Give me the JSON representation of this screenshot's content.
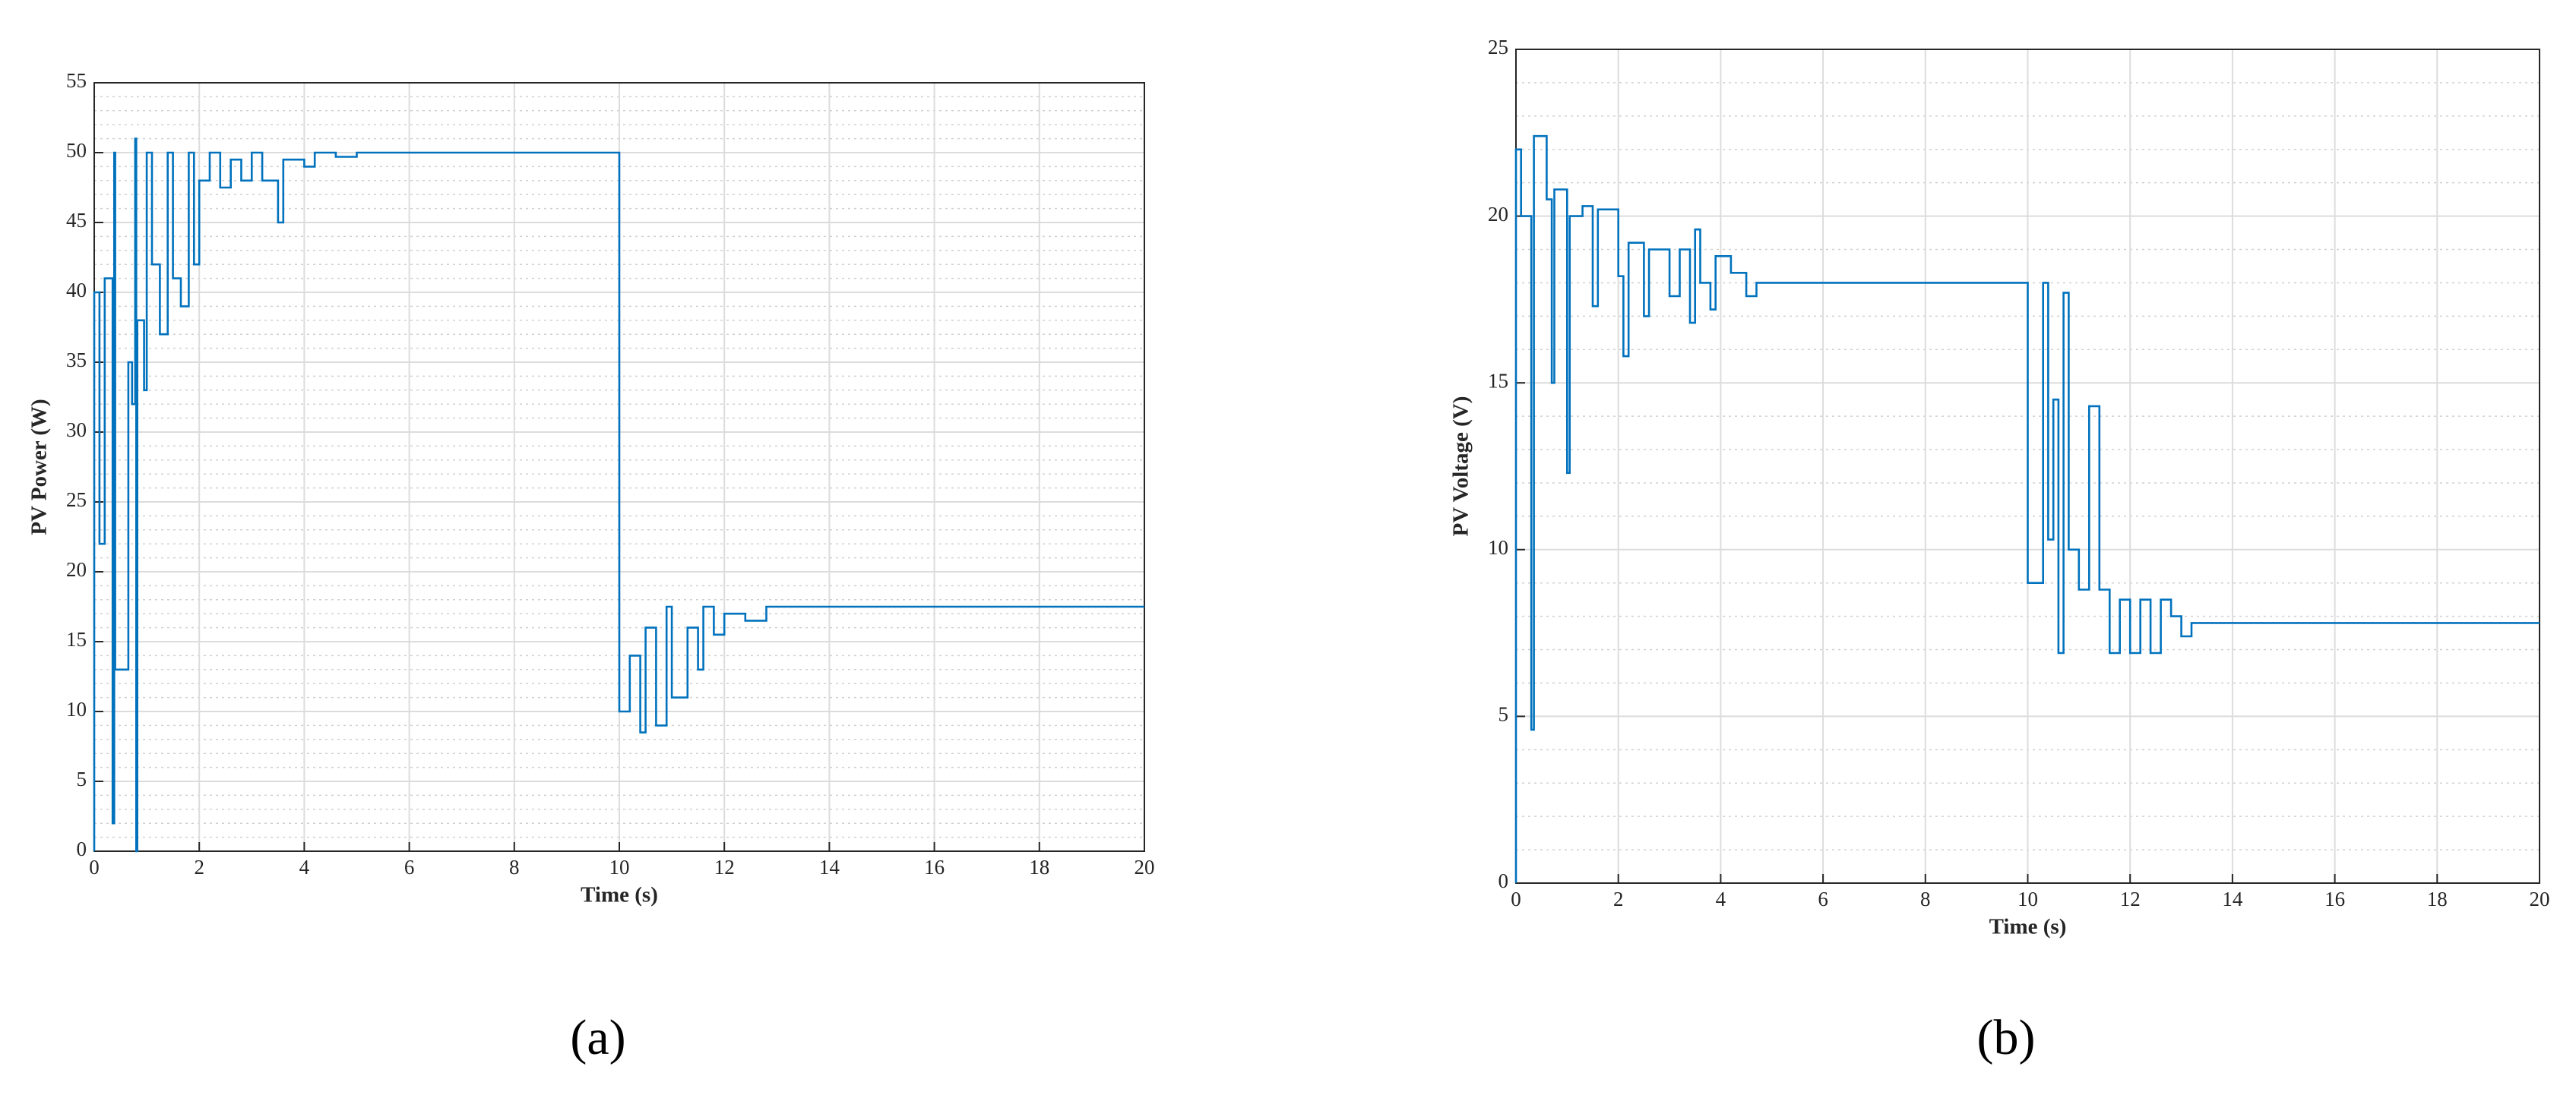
{
  "chart_data": [
    {
      "type": "line",
      "caption": "(a)",
      "xlabel": "Time (s)",
      "ylabel": "PV Power (W)",
      "xlim": [
        0,
        20
      ],
      "xticks": [
        0,
        2,
        4,
        6,
        8,
        10,
        12,
        14,
        16,
        18,
        20
      ],
      "ylim": [
        0,
        55
      ],
      "yticks": [
        0,
        5,
        10,
        15,
        20,
        25,
        30,
        35,
        40,
        45,
        50,
        55
      ],
      "grid": true,
      "minor_grid": true,
      "series": [
        {
          "color": "#0072bd",
          "x": [
            0,
            0,
            0.1,
            0.1,
            0.2,
            0.2,
            0.35,
            0.35,
            0.38,
            0.38,
            0.4,
            0.4,
            0.65,
            0.65,
            0.72,
            0.72,
            0.78,
            0.78,
            0.8,
            0.8,
            0.82,
            0.82,
            0.95,
            0.95,
            1.0,
            1.0,
            1.1,
            1.1,
            1.25,
            1.25,
            1.4,
            1.4,
            1.5,
            1.5,
            1.65,
            1.65,
            1.8,
            1.8,
            1.9,
            1.9,
            2.0,
            2.0,
            2.2,
            2.2,
            2.4,
            2.4,
            2.6,
            2.6,
            2.8,
            2.8,
            3.0,
            3.0,
            3.2,
            3.2,
            3.5,
            3.5,
            3.6,
            3.6,
            4.0,
            4.0,
            4.2,
            4.2,
            4.6,
            4.6,
            5.0,
            5.0,
            10,
            10,
            10.2,
            10.2,
            10.4,
            10.4,
            10.5,
            10.5,
            10.7,
            10.7,
            10.9,
            10.9,
            11.0,
            11.0,
            11.3,
            11.3,
            11.5,
            11.5,
            11.6,
            11.6,
            11.8,
            11.8,
            12.0,
            12.0,
            12.4,
            12.4,
            12.8,
            12.8,
            20
          ],
          "values": [
            0,
            40,
            40,
            22,
            22,
            41,
            41,
            2,
            2,
            50,
            50,
            13,
            13,
            35,
            35,
            32,
            32,
            51,
            51,
            0,
            0,
            38,
            38,
            33,
            33,
            50,
            50,
            42,
            42,
            37,
            37,
            50,
            50,
            41,
            41,
            39,
            39,
            50,
            50,
            42,
            42,
            48,
            48,
            50,
            50,
            47.5,
            47.5,
            49.5,
            49.5,
            48,
            48,
            50,
            50,
            48,
            48,
            45,
            45,
            49.5,
            49.5,
            49,
            49,
            50,
            50,
            49.7,
            49.7,
            50,
            50,
            10,
            10,
            14,
            14,
            8.5,
            8.5,
            16,
            16,
            9,
            9,
            17.5,
            17.5,
            11,
            11,
            16,
            16,
            13,
            13,
            17.5,
            17.5,
            15.5,
            15.5,
            17,
            17,
            16.5,
            16.5,
            17.5,
            17.5
          ]
        }
      ]
    },
    {
      "type": "line",
      "caption": "(b)",
      "xlabel": "Time (s)",
      "ylabel": "PV Voltage (V)",
      "xlim": [
        0,
        20
      ],
      "xticks": [
        0,
        2,
        4,
        6,
        8,
        10,
        12,
        14,
        16,
        18,
        20
      ],
      "ylim": [
        0,
        25
      ],
      "yticks": [
        0,
        5,
        10,
        15,
        20,
        25
      ],
      "grid": true,
      "minor_grid": true,
      "series": [
        {
          "color": "#0072bd",
          "x": [
            0,
            0,
            0.1,
            0.1,
            0.3,
            0.3,
            0.35,
            0.35,
            0.6,
            0.6,
            0.7,
            0.7,
            0.75,
            0.75,
            1.0,
            1.0,
            1.05,
            1.05,
            1.3,
            1.3,
            1.5,
            1.5,
            1.6,
            1.6,
            2.0,
            2.0,
            2.1,
            2.1,
            2.2,
            2.2,
            2.5,
            2.5,
            2.6,
            2.6,
            3.0,
            3.0,
            3.2,
            3.2,
            3.4,
            3.4,
            3.5,
            3.5,
            3.6,
            3.6,
            3.8,
            3.8,
            3.9,
            3.9,
            4.2,
            4.2,
            4.5,
            4.5,
            4.7,
            4.7,
            10,
            10,
            10.3,
            10.3,
            10.4,
            10.4,
            10.5,
            10.5,
            10.6,
            10.6,
            10.7,
            10.7,
            10.8,
            10.8,
            11.0,
            11.0,
            11.2,
            11.2,
            11.4,
            11.4,
            11.6,
            11.6,
            11.8,
            11.8,
            12.0,
            12.0,
            12.2,
            12.2,
            12.4,
            12.4,
            12.6,
            12.6,
            12.8,
            12.8,
            13.0,
            13.0,
            13.2,
            13.2,
            20
          ],
          "values": [
            0,
            22,
            22,
            20,
            20,
            4.6,
            4.6,
            22.4,
            22.4,
            20.5,
            20.5,
            15,
            15,
            20.8,
            20.8,
            12.3,
            12.3,
            20,
            20,
            20.3,
            20.3,
            17.3,
            17.3,
            20.2,
            20.2,
            18.2,
            18.2,
            15.8,
            15.8,
            19.2,
            19.2,
            17,
            17,
            19,
            19,
            17.6,
            17.6,
            19,
            19,
            16.8,
            16.8,
            19.6,
            19.6,
            18,
            18,
            17.2,
            17.2,
            18.8,
            18.8,
            18.3,
            18.3,
            17.6,
            17.6,
            18,
            18,
            9,
            9,
            18,
            18,
            10.3,
            10.3,
            14.5,
            14.5,
            6.9,
            6.9,
            17.7,
            17.7,
            10,
            10,
            8.8,
            8.8,
            14.3,
            14.3,
            8.8,
            8.8,
            6.9,
            6.9,
            8.5,
            8.5,
            6.9,
            6.9,
            8.5,
            8.5,
            6.9,
            6.9,
            8.5,
            8.5,
            8,
            8,
            7.4,
            7.4,
            7.8,
            7.8
          ]
        }
      ]
    }
  ]
}
